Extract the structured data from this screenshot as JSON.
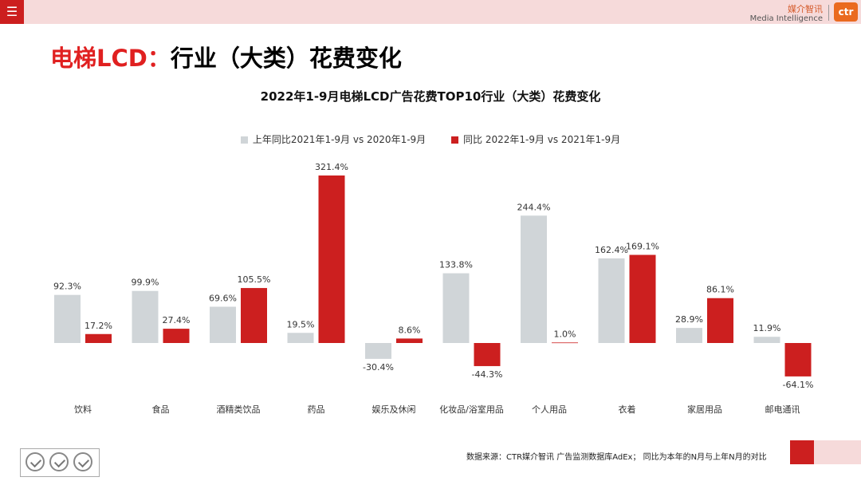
{
  "header": {
    "menu_icon": "hamburger-menu-icon",
    "brand_cn": "媒介智讯",
    "brand_en": "Media Intelligence",
    "logo": "ctr"
  },
  "page_title": {
    "red_part": "电梯LCD：",
    "black_part": "行业（大类）花费变化"
  },
  "colors": {
    "accent_red": "#cc1f1f",
    "series_gray": "#d0d5d8",
    "series_red": "#cc1f1f",
    "band_pink": "#f6dada"
  },
  "chart_data": {
    "type": "bar",
    "title": "2022年1-9月电梯LCD广告花费TOP10行业（大类）花费变化",
    "categories": [
      "饮料",
      "食品",
      "酒精类饮品",
      "药品",
      "娱乐及休闲",
      "化妆品/浴室用品",
      "个人用品",
      "衣着",
      "家居用品",
      "邮电通讯"
    ],
    "series": [
      {
        "name": "上年同比2021年1-9月 vs 2020年1-9月",
        "color": "#d0d5d8",
        "values": [
          92.3,
          99.9,
          69.6,
          19.5,
          -30.4,
          133.8,
          244.4,
          162.4,
          28.9,
          11.9
        ],
        "labels": [
          "92.3%",
          "99.9%",
          "69.6%",
          "19.5%",
          "-30.4%",
          "133.8%",
          "244.4%",
          "162.4%",
          "28.9%",
          "11.9%"
        ]
      },
      {
        "name": "同比 2022年1-9月 vs 2021年1-9月",
        "color": "#cc1f1f",
        "values": [
          17.2,
          27.4,
          105.5,
          321.4,
          8.6,
          -44.3,
          1.0,
          169.1,
          86.1,
          -64.1
        ],
        "labels": [
          "17.2%",
          "27.4%",
          "105.5%",
          "321.4%",
          "8.6%",
          "-44.3%",
          "1.0%",
          "169.1%",
          "86.1%",
          "-64.1%"
        ]
      }
    ],
    "ylim": [
      -64.1,
      321.4
    ],
    "grid": false,
    "legend_position": "top-center"
  },
  "footer": {
    "source": "数据来源：CTR媒介智讯 广告监测数据库AdEx；  同比为本年的N月与上年N月的对比",
    "cert_icons": [
      "certification-check-icon",
      "certification-check-icon",
      "certification-check-icon"
    ]
  }
}
